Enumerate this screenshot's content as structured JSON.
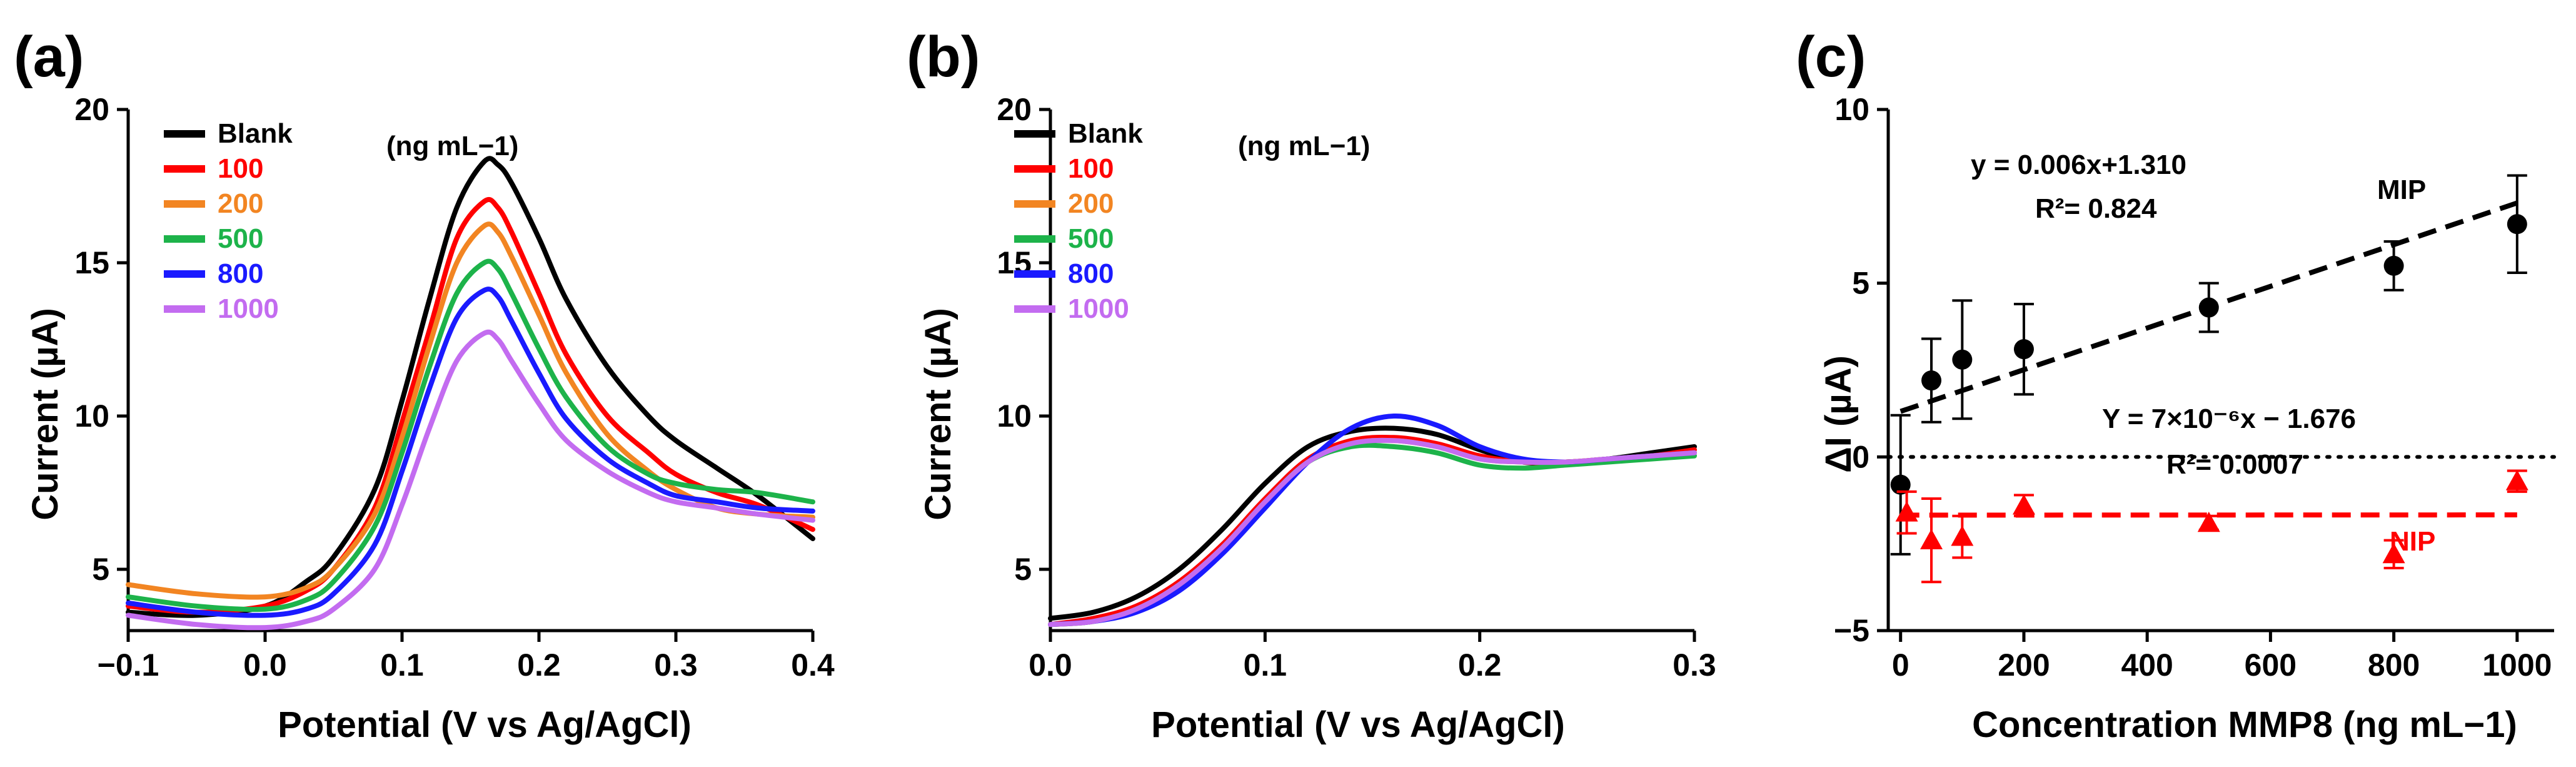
{
  "figure": {
    "panels": [
      "(a)",
      "(b)",
      "(c)"
    ],
    "units_label": "(ng mL−1)"
  },
  "chart_data": [
    {
      "type": "line",
      "panel": "(a)",
      "xlabel": "Potential (V vs Ag/AgCl)",
      "ylabel": "Current (µA)",
      "xlim": [
        -0.1,
        0.4
      ],
      "ylim": [
        3,
        20
      ],
      "xticks": [
        -0.1,
        0.0,
        0.1,
        0.2,
        0.3,
        0.4
      ],
      "xtick_labels": [
        "−0.1",
        "0.0",
        "0.1",
        "0.2",
        "0.3",
        "0.4"
      ],
      "yticks": [
        5,
        10,
        15,
        20
      ],
      "ytick_labels": [
        "5",
        "10",
        "15",
        "20"
      ],
      "legend_title": "(ng mL−1)",
      "series": [
        {
          "name": "Blank",
          "color": "#000000",
          "x": [
            -0.1,
            -0.05,
            0.0,
            0.03,
            0.05,
            0.08,
            0.1,
            0.12,
            0.14,
            0.16,
            0.17,
            0.18,
            0.2,
            0.22,
            0.25,
            0.28,
            0.3,
            0.33,
            0.36,
            0.4
          ],
          "y": [
            3.6,
            3.5,
            3.8,
            4.6,
            5.4,
            7.6,
            10.5,
            13.8,
            16.8,
            18.3,
            18.2,
            17.6,
            15.8,
            13.8,
            11.6,
            10.0,
            9.2,
            8.3,
            7.4,
            6.0
          ]
        },
        {
          "name": "100",
          "color": "#ff0000",
          "x": [
            -0.1,
            -0.05,
            0.0,
            0.03,
            0.05,
            0.08,
            0.1,
            0.12,
            0.14,
            0.16,
            0.17,
            0.18,
            0.2,
            0.22,
            0.25,
            0.28,
            0.3,
            0.33,
            0.36,
            0.4
          ],
          "y": [
            3.8,
            3.6,
            3.8,
            4.3,
            5.0,
            7.0,
            9.8,
            12.8,
            15.8,
            17.0,
            16.8,
            16.0,
            14.0,
            12.0,
            10.0,
            8.8,
            8.1,
            7.5,
            7.1,
            6.3
          ]
        },
        {
          "name": "200",
          "color": "#f28522",
          "x": [
            -0.1,
            -0.05,
            0.0,
            0.03,
            0.05,
            0.08,
            0.1,
            0.12,
            0.14,
            0.16,
            0.17,
            0.18,
            0.2,
            0.22,
            0.25,
            0.28,
            0.3,
            0.33,
            0.36,
            0.4
          ],
          "y": [
            4.5,
            4.2,
            4.1,
            4.4,
            5.0,
            6.8,
            9.3,
            12.3,
            15.0,
            16.2,
            16.0,
            15.2,
            13.3,
            11.4,
            9.4,
            8.2,
            7.6,
            7.0,
            6.8,
            6.7
          ]
        },
        {
          "name": "500",
          "color": "#1db34a",
          "x": [
            -0.1,
            -0.05,
            0.0,
            0.03,
            0.05,
            0.08,
            0.1,
            0.12,
            0.14,
            0.16,
            0.17,
            0.18,
            0.2,
            0.22,
            0.25,
            0.28,
            0.3,
            0.33,
            0.36,
            0.4
          ],
          "y": [
            4.1,
            3.8,
            3.7,
            4.0,
            4.6,
            6.4,
            8.8,
            11.6,
            14.0,
            15.0,
            14.8,
            14.0,
            12.2,
            10.6,
            9.0,
            8.1,
            7.8,
            7.6,
            7.5,
            7.2
          ]
        },
        {
          "name": "800",
          "color": "#1a1aff",
          "x": [
            -0.1,
            -0.05,
            0.0,
            0.03,
            0.05,
            0.08,
            0.1,
            0.12,
            0.14,
            0.16,
            0.17,
            0.18,
            0.2,
            0.22,
            0.25,
            0.28,
            0.3,
            0.33,
            0.36,
            0.4
          ],
          "y": [
            3.9,
            3.6,
            3.5,
            3.7,
            4.2,
            5.8,
            8.2,
            10.9,
            13.2,
            14.1,
            13.9,
            13.1,
            11.4,
            9.9,
            8.6,
            7.8,
            7.4,
            7.2,
            7.0,
            6.9
          ]
        },
        {
          "name": "1000",
          "color": "#c36cf0",
          "x": [
            -0.1,
            -0.05,
            0.0,
            0.03,
            0.05,
            0.08,
            0.1,
            0.12,
            0.14,
            0.16,
            0.17,
            0.18,
            0.2,
            0.22,
            0.25,
            0.28,
            0.3,
            0.33,
            0.36,
            0.4
          ],
          "y": [
            3.5,
            3.2,
            3.1,
            3.3,
            3.7,
            5.0,
            7.1,
            9.6,
            11.8,
            12.7,
            12.5,
            11.8,
            10.4,
            9.2,
            8.2,
            7.5,
            7.2,
            7.0,
            6.8,
            6.6
          ]
        }
      ]
    },
    {
      "type": "line",
      "panel": "(b)",
      "xlabel": "Potential (V vs Ag/AgCl)",
      "ylabel": "Current (µA)",
      "xlim": [
        0.0,
        0.3
      ],
      "ylim": [
        3,
        20
      ],
      "xticks": [
        0.0,
        0.1,
        0.2,
        0.3
      ],
      "xtick_labels": [
        "0.0",
        "0.1",
        "0.2",
        "0.3"
      ],
      "yticks": [
        5,
        10,
        15,
        20
      ],
      "ytick_labels": [
        "5",
        "10",
        "15",
        "20"
      ],
      "legend_title": "(ng mL−1)",
      "series": [
        {
          "name": "Blank",
          "color": "#000000",
          "x": [
            0.0,
            0.02,
            0.04,
            0.06,
            0.08,
            0.1,
            0.12,
            0.14,
            0.16,
            0.18,
            0.2,
            0.22,
            0.24,
            0.26,
            0.28,
            0.3
          ],
          "y": [
            3.4,
            3.6,
            4.1,
            5.0,
            6.3,
            7.8,
            9.0,
            9.5,
            9.6,
            9.4,
            8.9,
            8.5,
            8.5,
            8.6,
            8.8,
            9.0
          ]
        },
        {
          "name": "100",
          "color": "#ff0000",
          "x": [
            0.0,
            0.02,
            0.04,
            0.06,
            0.08,
            0.1,
            0.12,
            0.14,
            0.16,
            0.18,
            0.2,
            0.22,
            0.24,
            0.26,
            0.28,
            0.3
          ],
          "y": [
            3.2,
            3.4,
            3.8,
            4.6,
            5.8,
            7.3,
            8.6,
            9.2,
            9.3,
            9.1,
            8.7,
            8.5,
            8.5,
            8.6,
            8.7,
            8.9
          ]
        },
        {
          "name": "200",
          "color": "#f28522",
          "x": [
            0.0,
            0.02,
            0.04,
            0.06,
            0.08,
            0.1,
            0.12,
            0.14,
            0.16,
            0.18,
            0.2,
            0.22,
            0.24,
            0.26,
            0.28,
            0.3
          ],
          "y": [
            3.2,
            3.3,
            3.7,
            4.5,
            5.7,
            7.2,
            8.5,
            9.1,
            9.2,
            9.0,
            8.6,
            8.5,
            8.5,
            8.6,
            8.7,
            8.8
          ]
        },
        {
          "name": "500",
          "color": "#1db34a",
          "x": [
            0.0,
            0.02,
            0.04,
            0.06,
            0.08,
            0.1,
            0.12,
            0.14,
            0.16,
            0.18,
            0.2,
            0.22,
            0.24,
            0.26,
            0.28,
            0.3
          ],
          "y": [
            3.2,
            3.3,
            3.7,
            4.5,
            5.7,
            7.2,
            8.5,
            9.0,
            9.0,
            8.8,
            8.4,
            8.3,
            8.4,
            8.5,
            8.6,
            8.7
          ]
        },
        {
          "name": "800",
          "color": "#1a1aff",
          "x": [
            0.0,
            0.02,
            0.04,
            0.06,
            0.08,
            0.1,
            0.12,
            0.14,
            0.16,
            0.18,
            0.2,
            0.22,
            0.24,
            0.26,
            0.28,
            0.3
          ],
          "y": [
            3.2,
            3.3,
            3.6,
            4.3,
            5.5,
            7.0,
            8.5,
            9.6,
            10.0,
            9.7,
            9.0,
            8.6,
            8.5,
            8.6,
            8.7,
            8.8
          ]
        },
        {
          "name": "1000",
          "color": "#c36cf0",
          "x": [
            0.0,
            0.02,
            0.04,
            0.06,
            0.08,
            0.1,
            0.12,
            0.14,
            0.16,
            0.18,
            0.2,
            0.22,
            0.24,
            0.26,
            0.28,
            0.3
          ],
          "y": [
            3.2,
            3.3,
            3.7,
            4.5,
            5.7,
            7.2,
            8.5,
            9.1,
            9.2,
            9.0,
            8.6,
            8.5,
            8.5,
            8.6,
            8.7,
            8.8
          ]
        }
      ]
    },
    {
      "type": "scatter",
      "panel": "(c)",
      "xlabel": "Concentration MMP8 (ng mL−1)",
      "ylabel": "ΔI (µA)",
      "xlim": [
        -20,
        1060
      ],
      "ylim": [
        -5,
        10
      ],
      "xticks": [
        0,
        200,
        400,
        600,
        800,
        1000
      ],
      "xtick_labels": [
        "0",
        "200",
        "400",
        "600",
        "800",
        "1000"
      ],
      "yticks": [
        -5,
        0,
        5,
        10
      ],
      "ytick_labels": [
        "−5",
        "0",
        "5",
        "10"
      ],
      "zero_line": true,
      "series": [
        {
          "name": "MIP",
          "color": "#000000",
          "marker": "circle",
          "x": [
            0,
            50,
            100,
            200,
            500,
            800,
            1000
          ],
          "y": [
            -0.8,
            2.2,
            2.8,
            3.1,
            4.3,
            5.5,
            6.7
          ],
          "err": [
            2.0,
            1.2,
            1.7,
            1.3,
            0.7,
            0.7,
            1.4
          ],
          "fit": {
            "x": [
              0,
              1000
            ],
            "y": [
              1.31,
              7.31
            ],
            "color": "#000000"
          }
        },
        {
          "name": "NIP",
          "color": "#ff0000",
          "marker": "triangle",
          "x": [
            10,
            50,
            100,
            200,
            500,
            800,
            1000
          ],
          "y": [
            -1.6,
            -2.4,
            -2.3,
            -1.4,
            -1.9,
            -2.8,
            -0.7
          ],
          "err": [
            0.6,
            1.2,
            0.6,
            0.3,
            0.2,
            0.4,
            0.3
          ],
          "fit": {
            "x": [
              0,
              1000
            ],
            "y": [
              -1.676,
              -1.669
            ],
            "color": "#ff0000"
          }
        }
      ],
      "annotations": {
        "mip_equation": "y = 0.006x+1.310",
        "mip_r2": "R²= 0.824",
        "mip_label": "MIP",
        "nip_equation": "Y = 7×10⁻⁶x − 1.676",
        "nip_r2": "R²= 0.0007",
        "nip_label": "NIP"
      }
    }
  ]
}
